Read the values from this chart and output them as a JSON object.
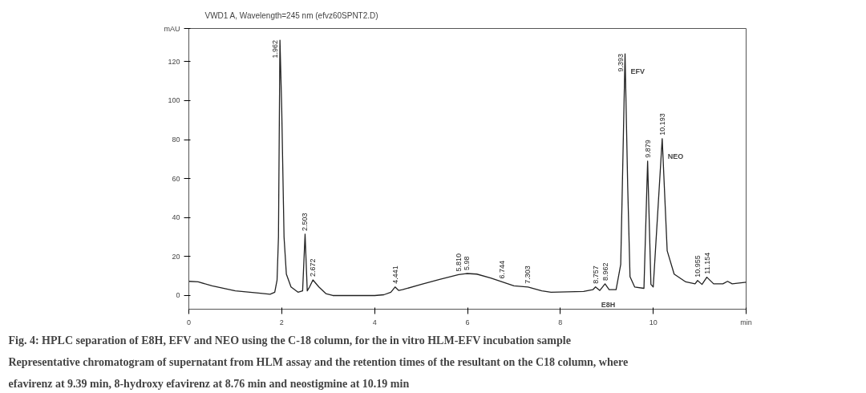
{
  "chart_data": {
    "type": "line",
    "title": "VWD1 A, Wavelength=245 nm (efvz60SPNT2.D)",
    "xlabel": "min",
    "ylabel": "mAU",
    "x": [
      0,
      0.2,
      0.5,
      1.0,
      1.5,
      1.75,
      1.85,
      1.9,
      1.93,
      1.962,
      2.0,
      2.05,
      2.1,
      2.2,
      2.35,
      2.45,
      2.503,
      2.55,
      2.6,
      2.672,
      2.8,
      2.95,
      3.1,
      4.0,
      4.2,
      4.35,
      4.441,
      4.52,
      4.6,
      5.0,
      5.4,
      5.81,
      5.98,
      6.2,
      6.5,
      6.744,
      7.0,
      7.303,
      7.6,
      7.8,
      8.5,
      8.7,
      8.757,
      8.85,
      8.962,
      9.05,
      9.2,
      9.3,
      9.393,
      9.45,
      9.5,
      9.6,
      9.8,
      9.879,
      9.95,
      10.0,
      10.193,
      10.3,
      10.45,
      10.7,
      10.9,
      10.955,
      11.05,
      11.154,
      11.3,
      11.5,
      11.6,
      11.7,
      12.0
    ],
    "series": [
      {
        "color": "#222222",
        "values": [
          7.3,
          7,
          5,
          2.4,
          1.3,
          0.7,
          1.7,
          8,
          30,
          131,
          96,
          30,
          11,
          4.4,
          1.7,
          2.4,
          31.5,
          2.4,
          4.4,
          8,
          4.4,
          1,
          0,
          0,
          0.4,
          1.7,
          4.4,
          2.6,
          3,
          5.7,
          8.3,
          10.7,
          11.3,
          11,
          9,
          7,
          5,
          4.4,
          2.4,
          1.7,
          2.1,
          3,
          4.4,
          2.6,
          6,
          3,
          3,
          16,
          124,
          56,
          9.7,
          4.4,
          3.7,
          69,
          5.7,
          4.4,
          80.5,
          23,
          11,
          7,
          6,
          7.7,
          5.7,
          9.4,
          6,
          6,
          7.3,
          6,
          6.8
        ]
      }
    ],
    "xlim": [
      0,
      12
    ],
    "ylim": [
      -7,
      137
    ],
    "xticks": [
      0,
      2,
      4,
      6,
      8,
      10
    ],
    "yticks": [
      0,
      20,
      40,
      60,
      80,
      100,
      120
    ],
    "grid": false,
    "annotations": [
      {
        "text": "1.962",
        "x": 1.962,
        "y": 131
      },
      {
        "text": "2.503",
        "x": 2.503,
        "y": 31.5
      },
      {
        "text": "2.672",
        "x": 2.672,
        "y": 8
      },
      {
        "text": "4.441",
        "x": 4.441,
        "y": 4.4
      },
      {
        "text": "5.810",
        "x": 5.81,
        "y": 10.7
      },
      {
        "text": "5.98",
        "x": 5.98,
        "y": 11.3
      },
      {
        "text": "6.744",
        "x": 6.744,
        "y": 7
      },
      {
        "text": "7.303",
        "x": 7.303,
        "y": 4.4
      },
      {
        "text": "8.757",
        "x": 8.757,
        "y": 4.4
      },
      {
        "text": "8.962",
        "x": 8.962,
        "y": 6
      },
      {
        "text": "9.393",
        "x": 9.393,
        "y": 124
      },
      {
        "text": "9.879",
        "x": 9.879,
        "y": 69
      },
      {
        "text": "10.193",
        "x": 10.193,
        "y": 80.5
      },
      {
        "text": "10.955",
        "x": 10.955,
        "y": 7.7
      },
      {
        "text": "11.154",
        "x": 11.154,
        "y": 9.4
      },
      {
        "text": "EFV",
        "x": 9.393,
        "y": 124
      },
      {
        "text": "NEO",
        "x": 10.193,
        "y": 80.5
      },
      {
        "text": "E8H",
        "x": 8.757,
        "y": 4.4
      },
      "Fig. 4: HPLC separation of E8H, EFV and NEO using the C-18 column, for the in vitro HLM-EFV incubation sample",
      "Representative chromatogram of supernatant from HLM assay and the retention times of the resultant on the C18 column, where",
      "efavirenz at 9.39 min, 8-hydroxy efavirenz at 8.76 min and neostigmine at 10.19 min"
    ]
  }
}
